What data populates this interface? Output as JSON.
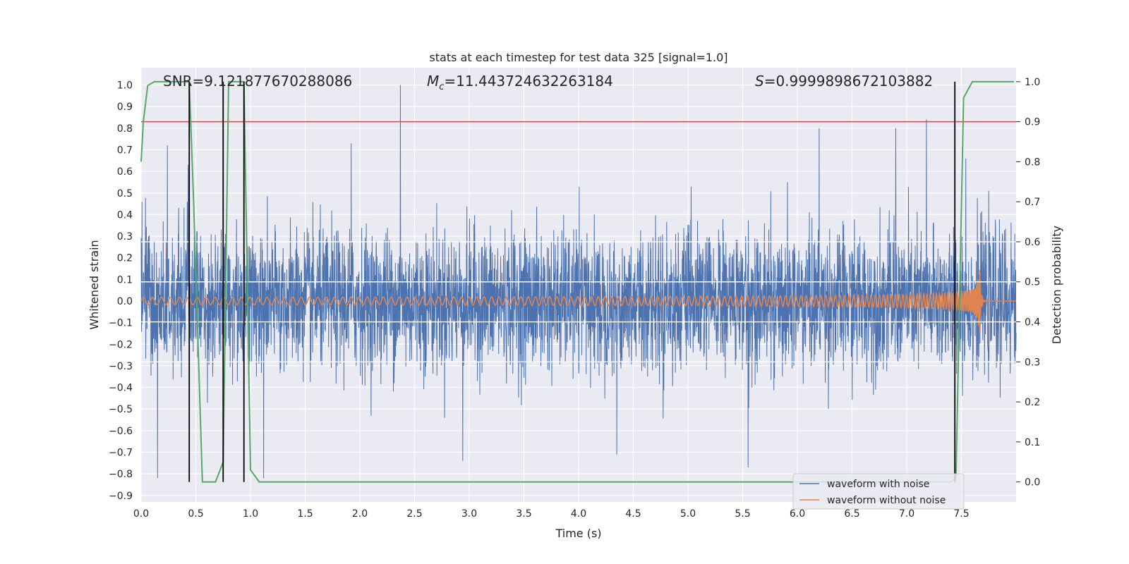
{
  "chart_data": {
    "type": "line",
    "title": "stats at each timestep for test data 325 [signal=1.0]",
    "xlabel": "Time (s)",
    "ylabel": "Whitened strain",
    "ylabel_right": "Detection probability",
    "xlim": [
      0.0,
      8.0
    ],
    "ylim": [
      -0.93,
      1.08
    ],
    "ylim_right": [
      -0.05,
      1.035
    ],
    "xticks": [
      "0.0",
      "0.5",
      "1.0",
      "1.5",
      "2.0",
      "2.5",
      "3.0",
      "3.5",
      "4.0",
      "4.5",
      "5.0",
      "5.5",
      "6.0",
      "6.5",
      "7.0",
      "7.5"
    ],
    "yticks": [
      "1.0",
      "0.9",
      "0.8",
      "0.7",
      "0.6",
      "0.5",
      "0.4",
      "0.3",
      "0.2",
      "0.1",
      "0.0",
      "−0.1",
      "−0.2",
      "−0.3",
      "−0.4",
      "−0.5",
      "−0.6",
      "−0.7",
      "−0.8",
      "−0.9"
    ],
    "yticks_right": [
      "1.0",
      "0.9",
      "0.8",
      "0.7",
      "0.6",
      "0.5",
      "0.4",
      "0.3",
      "0.2",
      "0.1",
      "0.0"
    ],
    "annotations": {
      "snr": "SNR=9.121877670288086",
      "mc_symbol": "M",
      "mc_sub": "c",
      "mc_value": "=11.443724632263184",
      "s_symbol": "S",
      "s_value": "=0.9999898672103882"
    },
    "threshold_right": 0.9,
    "vertical_lines_x": [
      0.44,
      0.75,
      0.94,
      7.44
    ],
    "series": [
      {
        "name": "waveform with noise",
        "color": "#4c72b0",
        "style": "noise",
        "peaks": [
          {
            "x": 0.15,
            "y": -0.82
          },
          {
            "x": 0.24,
            "y": 0.72
          },
          {
            "x": 0.43,
            "y": 0.63
          },
          {
            "x": 1.12,
            "y": -0.82
          },
          {
            "x": 1.92,
            "y": 0.73
          },
          {
            "x": 2.37,
            "y": 1.0
          },
          {
            "x": 2.94,
            "y": -0.74
          },
          {
            "x": 4.35,
            "y": -0.71
          },
          {
            "x": 5.55,
            "y": -0.77
          },
          {
            "x": 6.2,
            "y": 0.8
          },
          {
            "x": 6.9,
            "y": 0.8
          },
          {
            "x": 7.18,
            "y": 0.84
          },
          {
            "x": 7.54,
            "y": 0.66
          }
        ]
      },
      {
        "name": "waveform without noise",
        "color": "#dd8452",
        "style": "chirp",
        "merger_x": 7.66,
        "peak_amplitude": 0.32
      },
      {
        "name": "detection probability",
        "color": "#55a868",
        "axis": "right",
        "x": [
          0.0,
          0.02,
          0.06,
          0.12,
          0.44,
          0.48,
          0.56,
          0.68,
          0.75,
          0.8,
          0.88,
          0.94,
          1.0,
          1.08,
          7.4,
          7.45,
          7.52,
          7.6,
          7.98
        ],
        "y": [
          0.8,
          0.9,
          0.99,
          1.0,
          1.0,
          0.7,
          0.0,
          0.0,
          0.05,
          1.0,
          1.0,
          1.0,
          0.03,
          0.0,
          0.0,
          0.01,
          0.96,
          1.0,
          1.0
        ]
      }
    ],
    "threshold_color": "#c44e52",
    "legend": {
      "position": "lower-right",
      "entries": [
        {
          "label": "waveform with noise",
          "color": "#4c72b0"
        },
        {
          "label": "waveform without noise",
          "color": "#dd8452"
        }
      ]
    },
    "grid": true,
    "background": "#eaeaf2"
  }
}
